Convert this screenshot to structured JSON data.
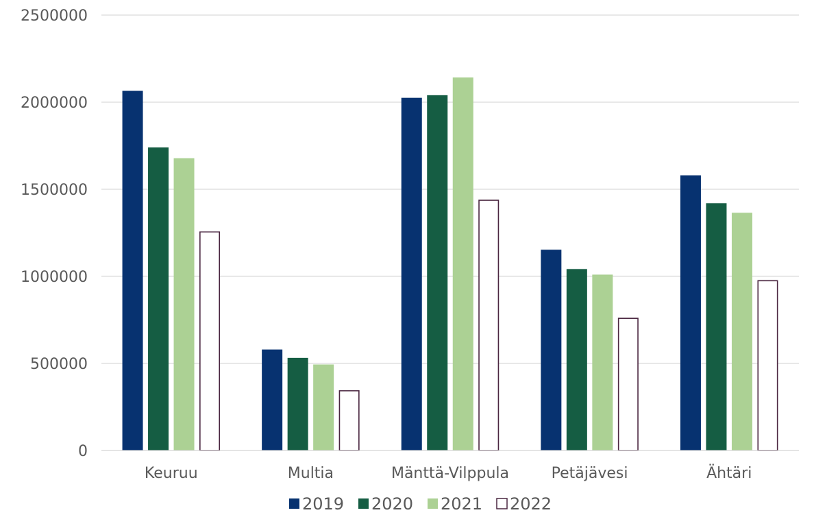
{
  "chart_data": {
    "type": "bar",
    "title": "",
    "xlabel": "",
    "ylabel": "",
    "categories": [
      "Keuruu",
      "Multia",
      "Mänttä-Vilppula",
      "Petäjävesi",
      "Ähtäri"
    ],
    "series": [
      {
        "name": "2019",
        "color": "#073270",
        "values": [
          2065000,
          580000,
          2025000,
          1153000,
          1580000
        ]
      },
      {
        "name": "2020",
        "color": "#155d43",
        "values": [
          1740000,
          532000,
          2040000,
          1042000,
          1420000
        ]
      },
      {
        "name": "2021",
        "color": "#acd194",
        "values": [
          1678000,
          494000,
          2142000,
          1010000,
          1365000
        ]
      },
      {
        "name": "2022",
        "color": "#ffffff",
        "outline": "#4a2640",
        "values": [
          1258000,
          346000,
          1440000,
          762000,
          978000
        ]
      }
    ],
    "yticks": [
      "0",
      "500000",
      "1000000",
      "1500000",
      "2000000",
      "2500000"
    ],
    "ylim": [
      0,
      2500000
    ],
    "grid": true,
    "legend": "bottom"
  }
}
